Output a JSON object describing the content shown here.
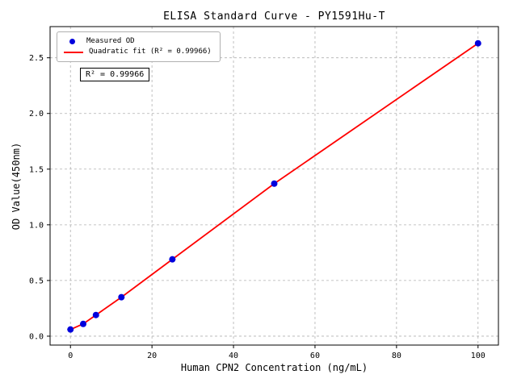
{
  "chart_data": {
    "type": "scatter",
    "title": "ELISA Standard Curve - PY1591Hu-T",
    "xlabel": "Human CPN2 Concentration (ng/mL)",
    "ylabel": "OD Value(450nm)",
    "x": [
      0,
      3.125,
      6.25,
      12.5,
      25,
      50,
      100
    ],
    "y": [
      0.06,
      0.11,
      0.19,
      0.35,
      0.69,
      1.37,
      2.63
    ],
    "series": [
      {
        "name": "Measured OD",
        "kind": "scatter",
        "color": "#0000dd"
      },
      {
        "name": "Quadratic fit (R² = 0.99966)",
        "kind": "line",
        "color": "#ff0000"
      }
    ],
    "annotation": "R² = 0.99966",
    "r_squared": 0.99966,
    "xlim": [
      -5,
      105
    ],
    "ylim": [
      -0.08,
      2.78
    ],
    "xticks": [
      0,
      20,
      40,
      60,
      80,
      100
    ],
    "xtick_labels": [
      "0",
      "20",
      "40",
      "60",
      "80",
      "100"
    ],
    "yticks": [
      0.0,
      0.5,
      1.0,
      1.5,
      2.0,
      2.5
    ],
    "ytick_labels": [
      "0.0",
      "0.5",
      "1.0",
      "1.5",
      "2.0",
      "2.5"
    ],
    "grid": true,
    "grid_color": "#b0b0b0",
    "axis_color": "#000000",
    "background": "#ffffff",
    "legend_position": "upper left"
  }
}
